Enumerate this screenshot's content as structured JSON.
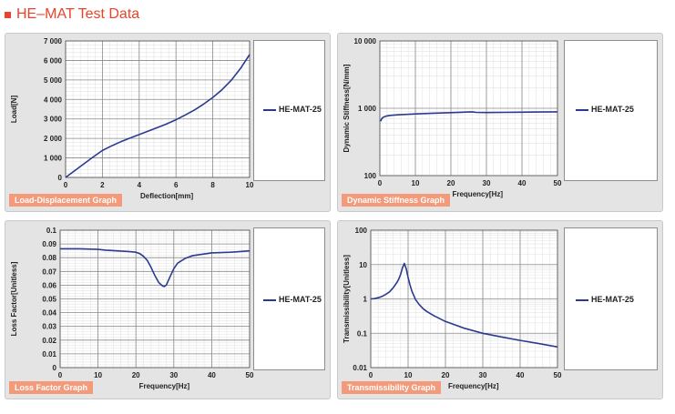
{
  "page_title": "HE–MAT Test Data",
  "title_color": "#e8432c",
  "series_color": "#2b3a8f",
  "tag_color": "#f29a7a",
  "chart_data": [
    {
      "id": "load",
      "type": "line",
      "tag": "Load-Displacement Graph",
      "xlabel": "Deflection[mm]",
      "ylabel": "Load[N]",
      "xlim": [
        0,
        10
      ],
      "ylim": [
        0,
        7000
      ],
      "yscale": "linear",
      "x_ticks": [
        0,
        2,
        4,
        6,
        8,
        10
      ],
      "x_tick_labels": [
        "0",
        "2",
        "4",
        "6",
        "8",
        "10"
      ],
      "y_ticks": [
        0,
        1000,
        2000,
        3000,
        4000,
        5000,
        6000,
        7000
      ],
      "y_tick_labels": [
        "0",
        "1 000",
        "2 000",
        "3 000",
        "4 000",
        "5 000",
        "6 000",
        "7 000"
      ],
      "grid": true,
      "legend_position": "right",
      "series": [
        {
          "name": "HE-MAT-25",
          "x": [
            0,
            0.5,
            1,
            1.5,
            2,
            2.5,
            3,
            3.5,
            4,
            4.5,
            5,
            5.5,
            6,
            6.5,
            7,
            7.5,
            8,
            8.5,
            9,
            9.5,
            10
          ],
          "y": [
            0,
            350,
            700,
            1050,
            1380,
            1620,
            1830,
            2020,
            2200,
            2380,
            2560,
            2750,
            2960,
            3200,
            3460,
            3760,
            4100,
            4500,
            4980,
            5580,
            6300
          ]
        }
      ]
    },
    {
      "id": "stiffness",
      "type": "line",
      "tag": "Dynamic Stiffness Graph",
      "xlabel": "Frequency[Hz]",
      "ylabel": "Dynamic Stiffness[N/mm]",
      "xlim": [
        0,
        50
      ],
      "ylim": [
        100,
        10000
      ],
      "yscale": "log",
      "x_ticks": [
        0,
        10,
        20,
        30,
        40,
        50
      ],
      "x_tick_labels": [
        "0",
        "10",
        "20",
        "30",
        "40",
        "50"
      ],
      "y_ticks": [
        100,
        1000,
        10000
      ],
      "y_tick_labels": [
        "100",
        "1 000",
        "10 000"
      ],
      "grid": true,
      "legend_position": "right",
      "series": [
        {
          "name": "HE-MAT-25",
          "x": [
            0.2,
            0.5,
            1,
            2,
            3,
            5,
            7,
            10,
            15,
            20,
            25,
            26,
            27,
            30,
            35,
            40,
            45,
            50
          ],
          "y": [
            640,
            700,
            740,
            770,
            785,
            800,
            810,
            825,
            845,
            860,
            880,
            885,
            870,
            865,
            870,
            875,
            880,
            885
          ]
        }
      ]
    },
    {
      "id": "loss",
      "type": "line",
      "tag": "Loss Factor Graph",
      "xlabel": "Frequency[Hz]",
      "ylabel": "Loss Factor[Unitless]",
      "xlim": [
        0,
        50
      ],
      "ylim": [
        0,
        0.1
      ],
      "yscale": "linear",
      "x_ticks": [
        0,
        10,
        20,
        30,
        40,
        50
      ],
      "x_tick_labels": [
        "0",
        "10",
        "20",
        "30",
        "40",
        "50"
      ],
      "y_ticks": [
        0,
        0.01,
        0.02,
        0.03,
        0.04,
        0.05,
        0.06,
        0.07,
        0.08,
        0.09,
        0.1
      ],
      "y_tick_labels": [
        "0",
        "0.01",
        "0.02",
        "0.03",
        "0.04",
        "0.05",
        "0.06",
        "0.07",
        "0.08",
        "0.09",
        "0.1"
      ],
      "grid": true,
      "legend_position": "right",
      "series": [
        {
          "name": "HE-MAT-25",
          "x": [
            0,
            5,
            10,
            12,
            15,
            18,
            20,
            21,
            22,
            23,
            24,
            25,
            26,
            27,
            27.5,
            28,
            29,
            30,
            31,
            33,
            35,
            40,
            45,
            50
          ],
          "y": [
            0.0865,
            0.0865,
            0.086,
            0.0855,
            0.085,
            0.0845,
            0.084,
            0.083,
            0.081,
            0.078,
            0.073,
            0.067,
            0.062,
            0.0595,
            0.059,
            0.06,
            0.066,
            0.072,
            0.076,
            0.0795,
            0.0815,
            0.0835,
            0.084,
            0.085
          ]
        }
      ]
    },
    {
      "id": "trans",
      "type": "line",
      "tag": "Transmissibility Graph",
      "xlabel": "Frequency[Hz]",
      "ylabel": "Transmissibility[Unitless]",
      "xlim": [
        0,
        50
      ],
      "ylim": [
        0.01,
        100
      ],
      "yscale": "log",
      "x_ticks": [
        0,
        10,
        20,
        30,
        40,
        50
      ],
      "x_tick_labels": [
        "0",
        "10",
        "20",
        "30",
        "40",
        "50"
      ],
      "y_ticks": [
        0.01,
        0.1,
        1,
        10,
        100
      ],
      "y_tick_labels": [
        "0.01",
        "0.1",
        "1",
        "10",
        "100"
      ],
      "grid": true,
      "legend_position": "right",
      "series": [
        {
          "name": "HE-MAT-25",
          "x": [
            0,
            1,
            2,
            3,
            4,
            5,
            6,
            7,
            7.5,
            8,
            8.5,
            9,
            9.5,
            10,
            10.5,
            11,
            12,
            13,
            14,
            15,
            17,
            20,
            25,
            30,
            35,
            40,
            45,
            50
          ],
          "y": [
            1.0,
            1.02,
            1.08,
            1.18,
            1.35,
            1.6,
            2.1,
            3.0,
            3.8,
            5.2,
            8.0,
            10.8,
            7.5,
            4.2,
            2.6,
            1.7,
            0.95,
            0.68,
            0.52,
            0.43,
            0.32,
            0.22,
            0.14,
            0.1,
            0.078,
            0.062,
            0.05,
            0.04
          ]
        }
      ]
    }
  ]
}
